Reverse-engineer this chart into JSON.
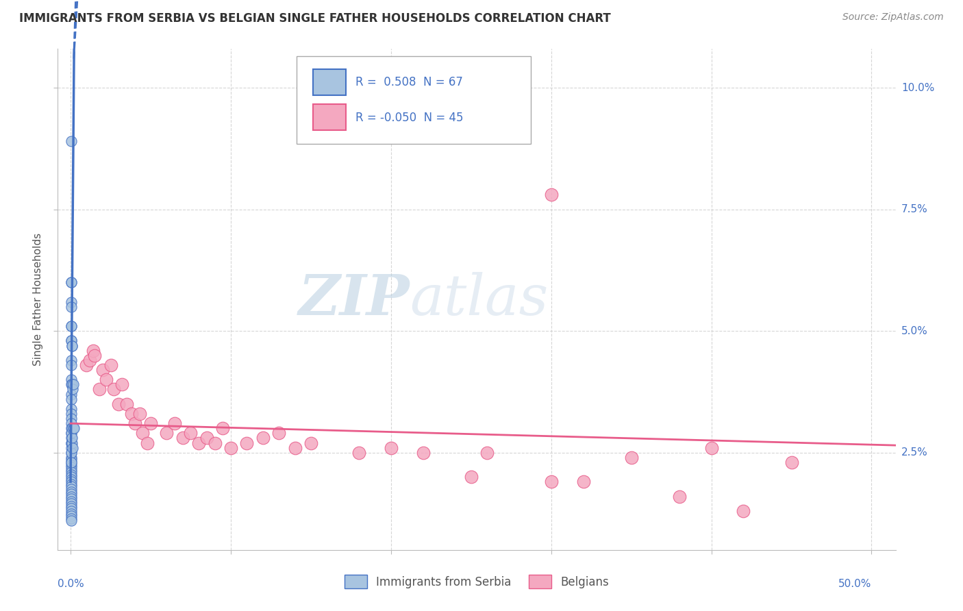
{
  "title": "IMMIGRANTS FROM SERBIA VS BELGIAN SINGLE FATHER HOUSEHOLDS CORRELATION CHART",
  "source": "Source: ZipAtlas.com",
  "ylabel": "Single Father Households",
  "x_ticks": [
    0.0,
    0.1,
    0.2,
    0.3,
    0.4,
    0.5
  ],
  "x_tick_labels": [
    "0.0%",
    "",
    "",
    "",
    "",
    "50.0%"
  ],
  "y_ticks": [
    0.025,
    0.05,
    0.075,
    0.1
  ],
  "y_tick_labels": [
    "2.5%",
    "5.0%",
    "7.5%",
    "10.0%"
  ],
  "xlim": [
    -0.008,
    0.515
  ],
  "ylim": [
    0.005,
    0.108
  ],
  "watermark_zip": "ZIP",
  "watermark_atlas": "atlas",
  "legend_blue_label": "Immigrants from Serbia",
  "legend_pink_label": "Belgians",
  "r_blue": "0.508",
  "n_blue": "67",
  "r_pink": "-0.050",
  "n_pink": "45",
  "blue_scatter": [
    [
      0.0002,
      0.089
    ],
    [
      0.0002,
      0.06
    ],
    [
      0.0002,
      0.056
    ],
    [
      0.0002,
      0.051
    ],
    [
      0.0002,
      0.048
    ],
    [
      0.0002,
      0.044
    ],
    [
      0.0002,
      0.043
    ],
    [
      0.0002,
      0.04
    ],
    [
      0.0002,
      0.039
    ],
    [
      0.0002,
      0.037
    ],
    [
      0.0002,
      0.036
    ],
    [
      0.0002,
      0.034
    ],
    [
      0.0002,
      0.033
    ],
    [
      0.0002,
      0.032
    ],
    [
      0.0002,
      0.031
    ],
    [
      0.0002,
      0.03
    ],
    [
      0.0002,
      0.029
    ],
    [
      0.0002,
      0.028
    ],
    [
      0.0002,
      0.027
    ],
    [
      0.0002,
      0.026
    ],
    [
      0.0002,
      0.025
    ],
    [
      0.0002,
      0.024
    ],
    [
      0.0002,
      0.0235
    ],
    [
      0.0002,
      0.023
    ],
    [
      0.0002,
      0.0225
    ],
    [
      0.0002,
      0.022
    ],
    [
      0.0002,
      0.0215
    ],
    [
      0.0002,
      0.021
    ],
    [
      0.0002,
      0.0205
    ],
    [
      0.0002,
      0.02
    ],
    [
      0.0002,
      0.0195
    ],
    [
      0.0002,
      0.019
    ],
    [
      0.0002,
      0.0185
    ],
    [
      0.0002,
      0.018
    ],
    [
      0.0002,
      0.0175
    ],
    [
      0.0002,
      0.017
    ],
    [
      0.0002,
      0.0165
    ],
    [
      0.0002,
      0.016
    ],
    [
      0.0002,
      0.0155
    ],
    [
      0.0002,
      0.015
    ],
    [
      0.0002,
      0.0145
    ],
    [
      0.0002,
      0.014
    ],
    [
      0.0002,
      0.0135
    ],
    [
      0.0002,
      0.013
    ],
    [
      0.0002,
      0.0125
    ],
    [
      0.0002,
      0.012
    ],
    [
      0.0002,
      0.0115
    ],
    [
      0.0002,
      0.011
    ],
    [
      0.0004,
      0.029
    ],
    [
      0.0004,
      0.027
    ],
    [
      0.0004,
      0.025
    ],
    [
      0.0004,
      0.023
    ],
    [
      0.0006,
      0.06
    ],
    [
      0.0006,
      0.055
    ],
    [
      0.0006,
      0.051
    ],
    [
      0.0006,
      0.048
    ],
    [
      0.0008,
      0.047
    ],
    [
      0.0008,
      0.039
    ],
    [
      0.0008,
      0.03
    ],
    [
      0.0008,
      0.027
    ],
    [
      0.001,
      0.047
    ],
    [
      0.001,
      0.028
    ],
    [
      0.0012,
      0.038
    ],
    [
      0.0012,
      0.026
    ],
    [
      0.0015,
      0.039
    ],
    [
      0.0015,
      0.03
    ],
    [
      0.002,
      0.03
    ]
  ],
  "pink_scatter": [
    [
      0.01,
      0.043
    ],
    [
      0.012,
      0.044
    ],
    [
      0.014,
      0.046
    ],
    [
      0.015,
      0.045
    ],
    [
      0.018,
      0.038
    ],
    [
      0.02,
      0.042
    ],
    [
      0.022,
      0.04
    ],
    [
      0.025,
      0.043
    ],
    [
      0.027,
      0.038
    ],
    [
      0.03,
      0.035
    ],
    [
      0.032,
      0.039
    ],
    [
      0.035,
      0.035
    ],
    [
      0.038,
      0.033
    ],
    [
      0.04,
      0.031
    ],
    [
      0.043,
      0.033
    ],
    [
      0.045,
      0.029
    ],
    [
      0.048,
      0.027
    ],
    [
      0.05,
      0.031
    ],
    [
      0.06,
      0.029
    ],
    [
      0.065,
      0.031
    ],
    [
      0.07,
      0.028
    ],
    [
      0.075,
      0.029
    ],
    [
      0.08,
      0.027
    ],
    [
      0.085,
      0.028
    ],
    [
      0.09,
      0.027
    ],
    [
      0.095,
      0.03
    ],
    [
      0.1,
      0.026
    ],
    [
      0.11,
      0.027
    ],
    [
      0.12,
      0.028
    ],
    [
      0.13,
      0.029
    ],
    [
      0.14,
      0.026
    ],
    [
      0.15,
      0.027
    ],
    [
      0.18,
      0.025
    ],
    [
      0.2,
      0.026
    ],
    [
      0.22,
      0.025
    ],
    [
      0.25,
      0.02
    ],
    [
      0.26,
      0.025
    ],
    [
      0.3,
      0.019
    ],
    [
      0.32,
      0.019
    ],
    [
      0.35,
      0.024
    ],
    [
      0.38,
      0.016
    ],
    [
      0.4,
      0.026
    ],
    [
      0.42,
      0.013
    ],
    [
      0.45,
      0.023
    ],
    [
      0.3,
      0.078
    ]
  ],
  "blue_color": "#a8c4e0",
  "pink_color": "#f4a8c0",
  "blue_line_color": "#4472c4",
  "pink_line_color": "#e85c8a",
  "grid_color": "#cccccc",
  "title_color": "#333333",
  "legend_text_color": "#4472c4",
  "background_color": "#ffffff",
  "blue_trend_x0": 0.0,
  "blue_trend_y0": 0.0195,
  "blue_trend_x1": 0.002,
  "blue_trend_y1": 0.101,
  "pink_trend_x0": 0.0,
  "pink_trend_y0": 0.031,
  "pink_trend_x1": 0.515,
  "pink_trend_y1": 0.0265
}
